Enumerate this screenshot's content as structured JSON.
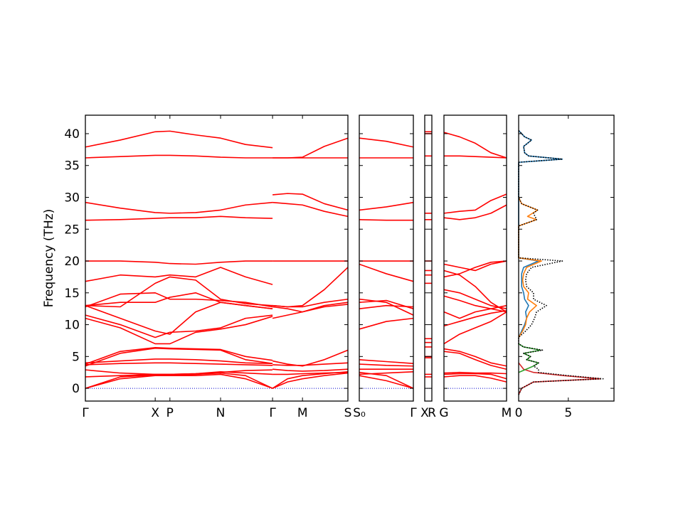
{
  "chart_data": {
    "type": "band_structure",
    "ylabel": "Frequency (THz)",
    "ylim": [
      -2,
      42.9
    ],
    "yticks": [
      0,
      5,
      10,
      15,
      20,
      25,
      30,
      35,
      40
    ],
    "color": "#ff0000",
    "zero_line_color": "#0000cc",
    "panels": [
      {
        "xlim": [
          0,
          1
        ],
        "xticks": [
          {
            "value": 0,
            "label": "Γ"
          },
          {
            "value": 0.266,
            "label": "X"
          },
          {
            "value": 0.322,
            "label": "P"
          },
          {
            "value": 0.515,
            "label": "N"
          },
          {
            "value": 0.713,
            "label": "Γ"
          },
          {
            "value": 0.827,
            "label": "M"
          },
          {
            "value": 1,
            "label": "S"
          }
        ],
        "segments": [
          {
            "x": [
              0,
              0.133,
              0.266,
              0.322,
              0.42,
              0.515,
              0.61,
              0.713
            ],
            "bands": [
              [
                0,
                1.5,
                2.0,
                2.0,
                2.0,
                2.2,
                1.5,
                0
              ],
              [
                0,
                1.8,
                2.1,
                2.1,
                2.2,
                2.4,
                2.0,
                0
              ],
              [
                1.8,
                2.0,
                2.2,
                2.2,
                2.3,
                2.6,
                2.4,
                2.2
              ],
              [
                2.9,
                2.4,
                2.2,
                2.2,
                2.3,
                2.5,
                2.8,
                2.9
              ],
              [
                3.5,
                5.5,
                6.3,
                6.2,
                6.1,
                6.0,
                4.5,
                3.9
              ],
              [
                3.8,
                5.8,
                6.4,
                6.3,
                6.2,
                6.1,
                5.0,
                4.4
              ],
              [
                4.0,
                4.3,
                4.6,
                4.6,
                4.5,
                4.3,
                4.0,
                3.9
              ],
              [
                3.7,
                3.9,
                4.0,
                4.0,
                3.9,
                3.8,
                3.7,
                3.6
              ],
              [
                11,
                9.5,
                7.0,
                7.0,
                8.8,
                9.3,
                10.0,
                11.3
              ],
              [
                11.5,
                10.0,
                8.0,
                8.8,
                9.0,
                9.5,
                11.0,
                11.5
              ],
              [
                13,
                11,
                9,
                8.5,
                12.0,
                13.5,
                13.0,
                12.5
              ],
              [
                13,
                13.5,
                13.5,
                14.3,
                15.0,
                13.5,
                13.0,
                12.5
              ],
              [
                12.8,
                14.8,
                15.0,
                14.0,
                14.0,
                13.8,
                13.5,
                12.8
              ],
              [
                13,
                12.8,
                16.5,
                17.5,
                17.0,
                14.0,
                13.3,
                13
              ],
              [
                16.8,
                17.8,
                17.5,
                17.8,
                17.5,
                19.0,
                17.5,
                16.3
              ],
              [
                20,
                20,
                19.8,
                19.6,
                19.5,
                19.8,
                20,
                20
              ],
              [
                26.4,
                26.5,
                26.7,
                26.8,
                26.8,
                27.0,
                26.8,
                26.7
              ],
              [
                29.2,
                28.3,
                27.6,
                27.5,
                27.6,
                28.0,
                28.8,
                29.2
              ],
              [
                36.2,
                36.4,
                36.6,
                36.6,
                36.5,
                36.3,
                36.2,
                36.2
              ],
              [
                37.9,
                39.0,
                40.3,
                40.4,
                39.8,
                39.3,
                38.3,
                37.8
              ]
            ]
          },
          {
            "x": [
              0.713,
              0.77,
              0.827,
              0.91,
              1
            ],
            "bands": [
              [
                0,
                1.0,
                1.5,
                2.0,
                2.4
              ],
              [
                0,
                1.5,
                2.0,
                2.3,
                2.6
              ],
              [
                2.2,
                2.2,
                2.3,
                2.4,
                2.5
              ],
              [
                3.0,
                2.8,
                2.7,
                2.8,
                3.0
              ],
              [
                4.3,
                3.8,
                3.5,
                4.5,
                6.0
              ],
              [
                3.7,
                3.6,
                3.6,
                3.8,
                4.0
              ],
              [
                11,
                11.5,
                12,
                12.8,
                13.2
              ],
              [
                12.8,
                12.5,
                12.0,
                13.0,
                13.5
              ],
              [
                13,
                12.8,
                12.8,
                13.5,
                14.0
              ],
              [
                13,
                12.8,
                13.0,
                15.5,
                19.0
              ],
              [
                20,
                20,
                20,
                20,
                20
              ],
              [
                30.4,
                30.6,
                30.5,
                29,
                28
              ],
              [
                29.2,
                29.0,
                28.8,
                27.8,
                27.0
              ],
              [
                36.2,
                36.2,
                36.2,
                36.2,
                36.2
              ],
              [
                36.2,
                36.2,
                36.3,
                38.0,
                39.3
              ]
            ]
          }
        ]
      },
      {
        "xlim": [
          0,
          1
        ],
        "xticks": [
          {
            "value": 0,
            "label": "S₀"
          },
          {
            "value": 1,
            "label": "Γ"
          }
        ],
        "segments": [
          {
            "x": [
              0,
              0.5,
              1
            ],
            "bands": [
              [
                2.0,
                1.2,
                0
              ],
              [
                2.5,
                2.0,
                0
              ],
              [
                2.2,
                2.4,
                2.6
              ],
              [
                3.0,
                3.0,
                3.0
              ],
              [
                3.8,
                3.6,
                3.5
              ],
              [
                4.5,
                4.2,
                3.9
              ],
              [
                9.3,
                10.5,
                11.0
              ],
              [
                12.5,
                13.0,
                12.8
              ],
              [
                13.5,
                13.8,
                12.5
              ],
              [
                14.0,
                13.5,
                11.5
              ],
              [
                19.5,
                18.0,
                16.8
              ],
              [
                20,
                20,
                20
              ],
              [
                26.5,
                26.4,
                26.4
              ],
              [
                28.0,
                28.5,
                29.2
              ],
              [
                36.2,
                36.2,
                36.2
              ],
              [
                39.3,
                38.8,
                37.9
              ]
            ]
          }
        ]
      },
      {
        "xlim": [
          0,
          1
        ],
        "xticks": [
          {
            "value": 0,
            "label": "X"
          },
          {
            "value": 1,
            "label": "R"
          }
        ],
        "segments": [
          {
            "x": [
              0,
              1
            ],
            "bands": [
              [
                1.8,
                1.8
              ],
              [
                2.2,
                2.2
              ],
              [
                4.8,
                4.8
              ],
              [
                5.0,
                5.0
              ],
              [
                6.5,
                6.5
              ],
              [
                7.2,
                7.2
              ],
              [
                7.8,
                7.8
              ],
              [
                16.5,
                16.5
              ],
              [
                17.8,
                17.8
              ],
              [
                18.5,
                18.5
              ],
              [
                20,
                20
              ],
              [
                26.5,
                26.5
              ],
              [
                27.5,
                27.5
              ],
              [
                36.5,
                36.5
              ],
              [
                40,
                40
              ],
              [
                40.3,
                40.3
              ]
            ]
          }
        ]
      },
      {
        "xlim": [
          0,
          1
        ],
        "xticks": [
          {
            "value": 0,
            "label": "G"
          },
          {
            "value": 1,
            "label": "M"
          }
        ],
        "segments": [
          {
            "x": [
              0,
              0.25,
              0.5,
              0.75,
              1
            ],
            "bands": [
              [
                1.8,
                2.0,
                2.0,
                1.6,
                1.0
              ],
              [
                2.2,
                2.3,
                2.3,
                2.2,
                1.5
              ],
              [
                2.4,
                2.5,
                2.4,
                2.4,
                2.3
              ],
              [
                5.8,
                5.5,
                4.5,
                3.6,
                3.0
              ],
              [
                6.2,
                5.8,
                5.0,
                4.0,
                3.5
              ],
              [
                7.0,
                8.5,
                9.5,
                10.5,
                12.0
              ],
              [
                9.8,
                10.5,
                11.2,
                11.8,
                12.2
              ],
              [
                12.0,
                11.0,
                12.0,
                12.5,
                13.0
              ],
              [
                14.5,
                13.8,
                13.0,
                12.5,
                12.0
              ],
              [
                15.5,
                15.0,
                14.0,
                13.0,
                12.5
              ],
              [
                18.5,
                17.8,
                16.0,
                13.5,
                12.0
              ],
              [
                19.5,
                19.0,
                18.5,
                19.5,
                20
              ],
              [
                17.5,
                18.0,
                19.0,
                19.8,
                20
              ],
              [
                26.8,
                26.5,
                26.8,
                27.5,
                28.8
              ],
              [
                27.5,
                27.8,
                28.0,
                29.5,
                30.5
              ],
              [
                36.5,
                36.5,
                36.4,
                36.3,
                36.2
              ],
              [
                40.2,
                39.5,
                38.5,
                37.0,
                36.2
              ]
            ]
          }
        ]
      }
    ],
    "dos": {
      "xlim": [
        0,
        9.6
      ],
      "xticks": [
        0,
        5
      ],
      "series": [
        {
          "color": "#d62728",
          "linestyle": "solid",
          "frequency": [
            -1,
            0,
            1,
            1.5,
            2,
            2.5,
            3,
            4
          ],
          "values": [
            0,
            0.3,
            1.5,
            8.2,
            4.5,
            1.5,
            0.5,
            0
          ]
        },
        {
          "color": "#2ca02c",
          "linestyle": "solid",
          "frequency": [
            2.5,
            3.5,
            4,
            4.5,
            5,
            5.5,
            6,
            6.5,
            7
          ],
          "values": [
            0,
            1.5,
            2.0,
            0.8,
            1.2,
            0.5,
            2.2,
            0.5,
            0
          ]
        },
        {
          "color": "#1f77b4",
          "linestyle": "solid",
          "frequency": [
            8,
            9,
            10,
            11,
            12,
            13,
            14,
            15,
            16,
            17,
            18,
            19,
            20,
            20.5,
            35.5,
            36,
            36.5,
            37,
            38,
            39,
            39.5,
            40,
            40.5
          ],
          "values": [
            0,
            0.3,
            0.6,
            0.8,
            0.7,
            1.0,
            0.6,
            0.5,
            0.3,
            0.3,
            0.3,
            0.5,
            2.0,
            0,
            0,
            4.4,
            1.0,
            0.6,
            0.5,
            1.3,
            0.6,
            0.3,
            0
          ]
        },
        {
          "color": "#ff7f0e",
          "linestyle": "solid",
          "frequency": [
            8,
            9,
            10,
            11,
            12,
            13,
            14,
            15,
            16,
            17,
            18,
            19,
            20,
            20.5,
            25.5,
            26.5,
            27,
            27.5,
            28,
            29,
            30
          ],
          "values": [
            0,
            0.4,
            0.7,
            0.8,
            1.1,
            1.8,
            0.9,
            1.0,
            0.5,
            0.4,
            0.5,
            0.8,
            2.3,
            0,
            0,
            1.8,
            0.9,
            1.4,
            1.9,
            0.3,
            0
          ]
        },
        {
          "color": "#000000",
          "linestyle": "dotted",
          "frequency": [
            -1,
            0,
            1,
            1.5,
            2,
            2.5,
            3,
            3.5,
            4,
            4.5,
            5,
            5.5,
            6,
            6.5,
            7,
            8,
            9,
            10,
            11,
            12,
            13,
            14,
            15,
            16,
            17,
            18,
            19,
            20,
            20.5,
            25.5,
            26.5,
            27.5,
            28,
            29,
            30,
            35.5,
            36,
            36.5,
            37,
            38,
            39,
            39.5,
            40,
            40.5
          ],
          "values": [
            0,
            0.3,
            1.5,
            8.5,
            5,
            2,
            2,
            1.5,
            2.0,
            0.8,
            1.2,
            0.5,
            2.4,
            0.5,
            0,
            0,
            0.7,
            1.3,
            1.6,
            1.8,
            2.8,
            1.5,
            1.5,
            0.8,
            0.7,
            0.8,
            1.3,
            4.4,
            0,
            0,
            1.8,
            1.5,
            1.9,
            0.3,
            0,
            0,
            4.4,
            1.0,
            0.6,
            0.5,
            1.3,
            0.6,
            0.3,
            0
          ]
        }
      ]
    }
  }
}
